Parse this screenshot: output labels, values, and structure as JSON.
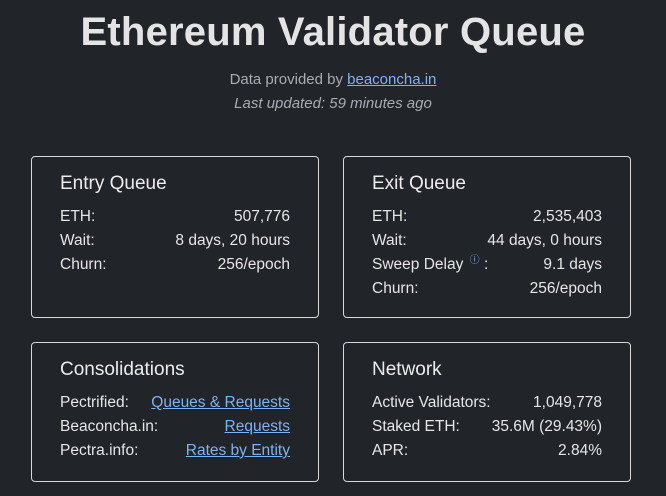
{
  "header": {
    "title": "Ethereum Validator Queue",
    "provided_prefix": "Data provided by ",
    "provided_link": "beaconcha.in",
    "last_updated": "Last updated: 59 minutes ago"
  },
  "entry_queue": {
    "title": "Entry Queue",
    "rows": [
      {
        "label": "ETH:",
        "value": "507,776"
      },
      {
        "label": "Wait:",
        "value": "8 days, 20 hours"
      },
      {
        "label": "Churn:",
        "value": "256/epoch"
      }
    ]
  },
  "exit_queue": {
    "title": "Exit Queue",
    "rows": [
      {
        "label": "ETH:",
        "value": "2,535,403"
      },
      {
        "label": "Wait:",
        "value": "44 days, 0 hours"
      },
      {
        "label": "Sweep Delay",
        "suffix": ":",
        "value": "9.1 days",
        "icon": "info-icon"
      },
      {
        "label": "Churn:",
        "value": "256/epoch"
      }
    ]
  },
  "consolidations": {
    "title": "Consolidations",
    "rows": [
      {
        "label": "Pectrified:",
        "link": "Queues & Requests"
      },
      {
        "label": "Beaconcha.in:",
        "link": "Requests"
      },
      {
        "label": "Pectra.info:",
        "link": "Rates by Entity"
      }
    ]
  },
  "network": {
    "title": "Network",
    "rows": [
      {
        "label": "Active Validators:",
        "value": "1,049,778"
      },
      {
        "label": "Staked ETH:",
        "value": "35.6M (29.43%)"
      },
      {
        "label": "APR:",
        "value": "2.84%"
      }
    ]
  },
  "colors": {
    "background": "#212429",
    "link": "#7fb2f0",
    "border": "#d8d8d8"
  }
}
